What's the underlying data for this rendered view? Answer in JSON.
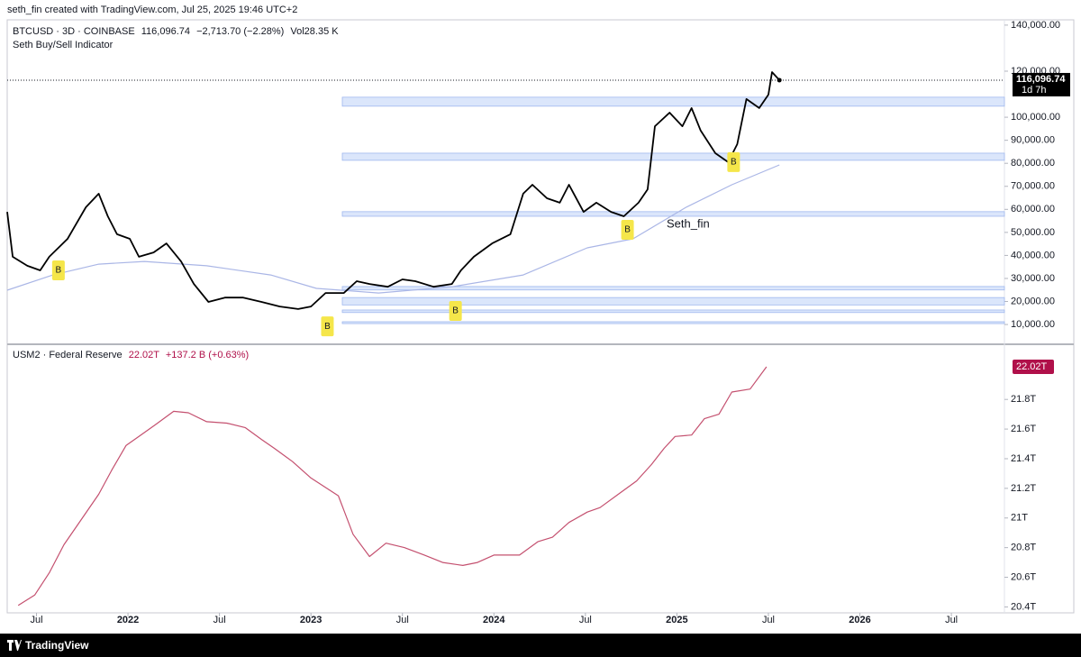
{
  "header": {
    "text": "seth_fin created with TradingView.com, Jul 25, 2025 19:46 UTC+2"
  },
  "footer": {
    "text": "TradingView"
  },
  "chart_data": [
    {
      "type": "line",
      "symbol": "BTCUSD · 3D · COINBASE",
      "last": "116,096.74",
      "change": "−2,713.70 (−2.28%)",
      "volume": "Vol28.35 K",
      "indicator": "Seth Buy/Sell Indicator",
      "annotation": "Seth_fin",
      "price_badge": "116,096.74",
      "countdown": "1d 7h",
      "xlim": [
        2021.34,
        2026.79
      ],
      "ylim": [
        2200,
        142300
      ],
      "yticks": [
        {
          "value": 10000,
          "label": "10,000.00"
        },
        {
          "value": 20000,
          "label": "20,000.00"
        },
        {
          "value": 30000,
          "label": "30,000.00"
        },
        {
          "value": 40000,
          "label": "40,000.00"
        },
        {
          "value": 50000,
          "label": "50,000.00"
        },
        {
          "value": 60000,
          "label": "60,000.00"
        },
        {
          "value": 70000,
          "label": "70,000.00"
        },
        {
          "value": 80000,
          "label": "80,000.00"
        },
        {
          "value": 90000,
          "label": "90,000.00"
        },
        {
          "value": 100000,
          "label": "100,000.00"
        },
        {
          "value": 120000,
          "label": "120,000.00"
        },
        {
          "value": 140000,
          "label": "140,000.00"
        }
      ],
      "series": [
        {
          "name": "BTCUSD",
          "color": "#000000",
          "x": [
            2021.34,
            2021.37,
            2021.45,
            2021.52,
            2021.57,
            2021.67,
            2021.77,
            2021.84,
            2021.89,
            2021.94,
            2022.01,
            2022.06,
            2022.14,
            2022.21,
            2022.29,
            2022.36,
            2022.44,
            2022.53,
            2022.63,
            2022.73,
            2022.83,
            2022.93,
            2023.0,
            2023.08,
            2023.18,
            2023.25,
            2023.32,
            2023.42,
            2023.5,
            2023.57,
            2023.67,
            2023.77,
            2023.82,
            2023.89,
            2023.99,
            2024.09,
            2024.16,
            2024.21,
            2024.29,
            2024.36,
            2024.41,
            2024.49,
            2024.56,
            2024.64,
            2024.71,
            2024.79,
            2024.84,
            2024.88,
            2024.96,
            2025.03,
            2025.08,
            2025.13,
            2025.21,
            2025.28,
            2025.33,
            2025.38,
            2025.45,
            2025.5,
            2025.52,
            2025.56
          ],
          "values": [
            58900,
            39400,
            35500,
            33500,
            39400,
            47200,
            60900,
            66800,
            57000,
            49200,
            47200,
            39400,
            41300,
            45200,
            37400,
            27600,
            19800,
            21700,
            21700,
            19800,
            17800,
            16700,
            17800,
            23700,
            23700,
            28800,
            27600,
            26400,
            29600,
            28800,
            26400,
            27600,
            33500,
            39400,
            45200,
            49200,
            66800,
            70700,
            64800,
            62900,
            70700,
            58900,
            62900,
            58900,
            57000,
            62900,
            68700,
            96100,
            102000,
            96100,
            104000,
            94200,
            84400,
            80500,
            88300,
            107900,
            104000,
            109800,
            119600,
            116100
          ]
        },
        {
          "color": "#aab6e6",
          "x": [
            2021.34,
            2021.59,
            2021.84,
            2022.09,
            2022.43,
            2022.78,
            2023.03,
            2023.37,
            2023.77,
            2024.16,
            2024.51,
            2024.76,
            2025.05,
            2025.3,
            2025.56
          ],
          "values": [
            24900,
            31500,
            36200,
            37400,
            35500,
            31500,
            25700,
            23700,
            26400,
            31500,
            43300,
            47200,
            60900,
            70700,
            79300
          ]
        }
      ],
      "zones": [
        [
          104800,
          108700
        ],
        [
          81300,
          84400
        ],
        [
          57000,
          59000
        ],
        [
          25000,
          26500
        ],
        [
          18500,
          21700
        ],
        [
          15200,
          16300
        ],
        [
          10400,
          11200
        ]
      ],
      "markers": {
        "x": [
          2021.62,
          2023.09,
          2023.79,
          2024.73,
          2025.31
        ],
        "values": [
          33500,
          9200,
          15900,
          51100,
          80500
        ],
        "labels": [
          "B",
          "B",
          "B",
          "B",
          "B"
        ],
        "color": "#f5e64a"
      }
    },
    {
      "type": "line",
      "symbol": "USM2 · Federal Reserve",
      "last": "22.02T",
      "change": "+137.2 B (+0.63%)",
      "last_value_label": "22.02T",
      "badge_color": "#b0104a",
      "xlim": [
        2021.34,
        2026.79
      ],
      "xticks": [
        {
          "value": 2021.5,
          "label": "Jul"
        },
        2022,
        {
          "value": 2022.5,
          "label": "Jul"
        },
        2023,
        {
          "value": 2023.5,
          "label": "Jul"
        },
        2024,
        {
          "value": 2024.5,
          "label": "Jul"
        },
        2025,
        {
          "value": 2025.5,
          "label": "Jul"
        },
        2026,
        {
          "value": 2026.5,
          "label": "Jul"
        }
      ],
      "ylim": [
        20.36,
        22.16
      ],
      "yticks": [
        {
          "value": 20.4,
          "label": "20.4T"
        },
        {
          "value": 20.6,
          "label": "20.6T"
        },
        {
          "value": 20.8,
          "label": "20.8T"
        },
        {
          "value": 21,
          "label": "21T"
        },
        {
          "value": 21.2,
          "label": "21.2T"
        },
        {
          "value": 21.4,
          "label": "21.4T"
        },
        {
          "value": 21.6,
          "label": "21.6T"
        },
        {
          "value": 21.8,
          "label": "21.8T"
        }
      ],
      "series": [
        {
          "name": "USM2",
          "color": "#c4506f",
          "x": [
            2021.4,
            2021.49,
            2021.57,
            2021.65,
            2021.74,
            2021.84,
            2021.91,
            2021.99,
            2022.06,
            2022.15,
            2022.25,
            2022.33,
            2022.43,
            2022.54,
            2022.64,
            2022.73,
            2022.8,
            2022.9,
            2023.0,
            2023.15,
            2023.23,
            2023.32,
            2023.41,
            2023.51,
            2023.62,
            2023.72,
            2023.83,
            2023.91,
            2024.0,
            2024.14,
            2024.24,
            2024.32,
            2024.41,
            2024.51,
            2024.58,
            2024.68,
            2024.78,
            2024.86,
            2024.93,
            2024.99,
            2025.08,
            2025.15,
            2025.23,
            2025.3,
            2025.4,
            2025.49
          ],
          "values": [
            20.41,
            20.48,
            20.63,
            20.82,
            20.98,
            21.16,
            21.32,
            21.49,
            21.55,
            21.63,
            21.72,
            21.71,
            21.65,
            21.64,
            21.61,
            21.53,
            21.47,
            21.38,
            21.27,
            21.15,
            20.89,
            20.74,
            20.83,
            20.8,
            20.75,
            20.7,
            20.68,
            20.7,
            20.75,
            20.75,
            20.84,
            20.87,
            20.97,
            21.04,
            21.07,
            21.16,
            21.25,
            21.36,
            21.47,
            21.55,
            21.56,
            21.67,
            21.7,
            21.85,
            21.87,
            22.02
          ]
        }
      ]
    }
  ]
}
